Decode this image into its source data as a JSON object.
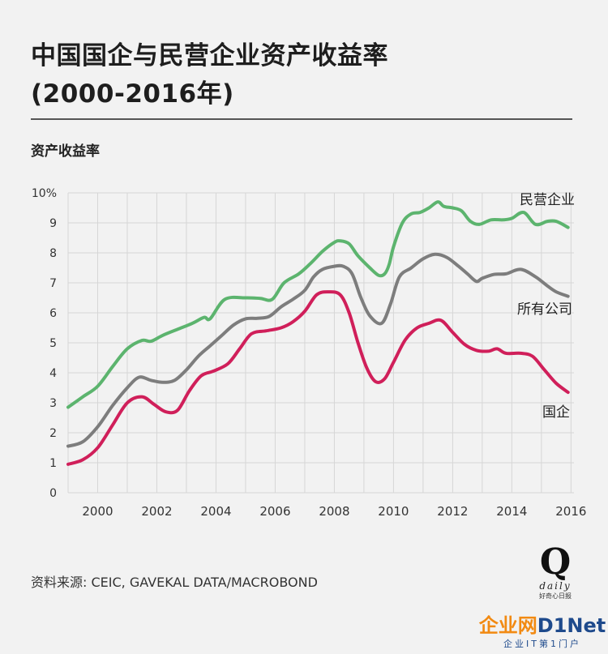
{
  "page": {
    "title_line1": "中国国企与民营企业资产收益率",
    "title_line2": "(2000-2016年)",
    "y_axis_label": "资产收益率",
    "source": "资料来源: CEIC, GAVEKAL DATA/MACROBOND",
    "logo_letter": "Q",
    "logo_word": "daily",
    "logo_sub": "好奇心日报",
    "watermark_name": "企业网",
    "watermark_name2": "D1Net",
    "watermark_tag": "企业IT第1门户"
  },
  "colors": {
    "private": "#5cb46e",
    "all": "#7d7d7d",
    "soe": "#d01f5a",
    "grid": "#d6d6d6"
  },
  "chart_data": {
    "type": "line",
    "xlabel": "",
    "ylabel": "资产收益率",
    "xlim": [
      1999,
      2016.1
    ],
    "ylim": [
      0,
      10
    ],
    "x_ticks": [
      "2000",
      "2002",
      "2004",
      "2006",
      "2008",
      "2010",
      "2012",
      "2014",
      "2016"
    ],
    "y_ticks": [
      "0",
      "1",
      "2",
      "3",
      "4",
      "5",
      "6",
      "7",
      "8",
      "9",
      "10%"
    ],
    "grid": true,
    "series": [
      {
        "name": "民营企业",
        "color_key": "private",
        "x": [
          1999.0,
          1999.5,
          2000.0,
          2000.5,
          2001.0,
          2001.5,
          2001.8,
          2002.2,
          2002.7,
          2003.2,
          2003.6,
          2003.8,
          2004.3,
          2005.0,
          2005.5,
          2005.9,
          2006.3,
          2006.8,
          2007.2,
          2007.6,
          2008.0,
          2008.2,
          2008.5,
          2008.8,
          2009.2,
          2009.5,
          2009.7,
          2009.85,
          2010.0,
          2010.3,
          2010.6,
          2010.9,
          2011.2,
          2011.5,
          2011.7,
          2012.0,
          2012.3,
          2012.6,
          2012.9,
          2013.3,
          2013.7,
          2014.0,
          2014.4,
          2014.8,
          2015.2,
          2015.5,
          2015.9
        ],
        "values": [
          2.85,
          3.2,
          3.55,
          4.2,
          4.8,
          5.08,
          5.05,
          5.25,
          5.45,
          5.65,
          5.85,
          5.8,
          6.45,
          6.5,
          6.48,
          6.45,
          7.0,
          7.3,
          7.65,
          8.05,
          8.35,
          8.4,
          8.3,
          7.9,
          7.5,
          7.25,
          7.3,
          7.6,
          8.2,
          9.0,
          9.3,
          9.35,
          9.5,
          9.7,
          9.55,
          9.5,
          9.4,
          9.05,
          8.95,
          9.1,
          9.1,
          9.15,
          9.35,
          8.95,
          9.05,
          9.05,
          8.85
        ]
      },
      {
        "name": "所有公司",
        "color_key": "all",
        "x": [
          1999.0,
          1999.5,
          2000.0,
          2000.5,
          2001.0,
          2001.4,
          2001.8,
          2002.2,
          2002.6,
          2003.0,
          2003.4,
          2003.8,
          2004.2,
          2004.6,
          2005.0,
          2005.4,
          2005.8,
          2006.2,
          2006.6,
          2007.0,
          2007.3,
          2007.6,
          2008.0,
          2008.3,
          2008.6,
          2008.9,
          2009.2,
          2009.6,
          2009.9,
          2010.2,
          2010.6,
          2011.0,
          2011.4,
          2011.8,
          2012.2,
          2012.5,
          2012.8,
          2013.0,
          2013.4,
          2013.8,
          2014.3,
          2014.8,
          2015.2,
          2015.5,
          2015.9
        ],
        "values": [
          1.55,
          1.7,
          2.2,
          2.9,
          3.5,
          3.85,
          3.75,
          3.68,
          3.75,
          4.1,
          4.55,
          4.9,
          5.25,
          5.6,
          5.8,
          5.82,
          5.88,
          6.2,
          6.45,
          6.75,
          7.2,
          7.45,
          7.55,
          7.55,
          7.3,
          6.5,
          5.9,
          5.65,
          6.3,
          7.2,
          7.5,
          7.8,
          7.95,
          7.85,
          7.55,
          7.3,
          7.05,
          7.15,
          7.28,
          7.3,
          7.45,
          7.2,
          6.9,
          6.7,
          6.55
        ]
      },
      {
        "name": "国企",
        "color_key": "soe",
        "x": [
          1999.0,
          1999.5,
          2000.0,
          2000.5,
          2001.0,
          2001.5,
          2001.9,
          2002.3,
          2002.7,
          2003.1,
          2003.5,
          2003.9,
          2004.4,
          2004.8,
          2005.2,
          2005.7,
          2006.2,
          2006.6,
          2007.0,
          2007.4,
          2007.8,
          2008.2,
          2008.5,
          2008.8,
          2009.1,
          2009.4,
          2009.7,
          2010.0,
          2010.4,
          2010.8,
          2011.2,
          2011.6,
          2012.0,
          2012.4,
          2012.8,
          2013.2,
          2013.5,
          2013.8,
          2014.3,
          2014.7,
          2015.1,
          2015.5,
          2015.9
        ],
        "values": [
          0.95,
          1.1,
          1.5,
          2.25,
          3.0,
          3.2,
          2.95,
          2.7,
          2.75,
          3.4,
          3.9,
          4.05,
          4.3,
          4.8,
          5.3,
          5.4,
          5.5,
          5.7,
          6.05,
          6.6,
          6.7,
          6.6,
          6.0,
          5.0,
          4.15,
          3.7,
          3.8,
          4.35,
          5.1,
          5.5,
          5.65,
          5.75,
          5.35,
          4.95,
          4.75,
          4.72,
          4.8,
          4.65,
          4.65,
          4.55,
          4.1,
          3.65,
          3.35
        ]
      }
    ],
    "annotations": [
      {
        "text": "民营企业",
        "series": "民营企业"
      },
      {
        "text": "所有公司",
        "series": "所有公司"
      },
      {
        "text": "国企",
        "series": "国企"
      }
    ]
  }
}
